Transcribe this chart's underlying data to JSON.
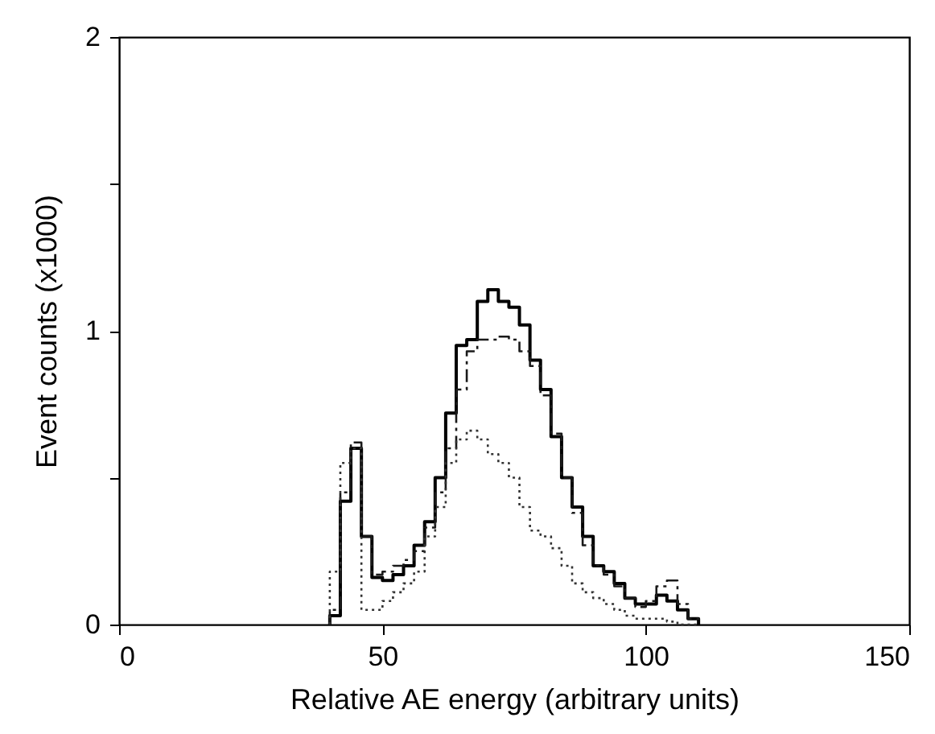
{
  "chart_data": {
    "type": "histogram",
    "xlabel": "Relative AE energy (arbitrary units)",
    "ylabel": "Event counts (x1000)",
    "bins": [
      40,
      42,
      44,
      46,
      48,
      50,
      52,
      54,
      56,
      58,
      60,
      62,
      64,
      66,
      68,
      70,
      72,
      74,
      76,
      78,
      80,
      82,
      84,
      86,
      88,
      90,
      92,
      94,
      96,
      98,
      100,
      102,
      104,
      106,
      108,
      110
    ],
    "series": [
      {
        "color": "#000000",
        "line_style": "solid",
        "values": [
          0.03,
          0.42,
          0.6,
          0.3,
          0.16,
          0.15,
          0.17,
          0.2,
          0.27,
          0.35,
          0.5,
          0.72,
          0.95,
          0.97,
          1.1,
          1.14,
          1.1,
          1.08,
          1.02,
          0.9,
          0.8,
          0.64,
          0.5,
          0.4,
          0.3,
          0.2,
          0.18,
          0.14,
          0.09,
          0.07,
          0.07,
          0.1,
          0.08,
          0.05,
          0.02
        ]
      },
      {
        "color": "#1a1a1a",
        "line_style": "dashed",
        "values": [
          0.05,
          0.45,
          0.62,
          0.3,
          0.17,
          0.18,
          0.2,
          0.22,
          0.25,
          0.33,
          0.45,
          0.6,
          0.8,
          0.93,
          0.97,
          0.97,
          0.98,
          0.97,
          0.93,
          0.88,
          0.78,
          0.65,
          0.5,
          0.38,
          0.27,
          0.2,
          0.17,
          0.13,
          0.09,
          0.06,
          0.08,
          0.13,
          0.15,
          0.07,
          0.02
        ]
      },
      {
        "color": "#333333",
        "line_style": "dotted",
        "values": [
          0.18,
          0.55,
          0.6,
          0.05,
          0.05,
          0.08,
          0.11,
          0.14,
          0.18,
          0.3,
          0.4,
          0.55,
          0.63,
          0.66,
          0.63,
          0.58,
          0.55,
          0.5,
          0.4,
          0.32,
          0.3,
          0.26,
          0.2,
          0.14,
          0.11,
          0.09,
          0.07,
          0.05,
          0.03,
          0.02,
          0.02,
          0.02,
          0.01,
          0,
          0
        ]
      }
    ],
    "xlim": [
      0,
      150
    ],
    "xticks": [
      0,
      50,
      100,
      150
    ],
    "ylim": [
      0,
      2
    ],
    "yticks": [
      0,
      {
        "value": 0.5,
        "label": null
      },
      1,
      {
        "value": 1.5,
        "label": null
      },
      2
    ],
    "grid": false
  }
}
